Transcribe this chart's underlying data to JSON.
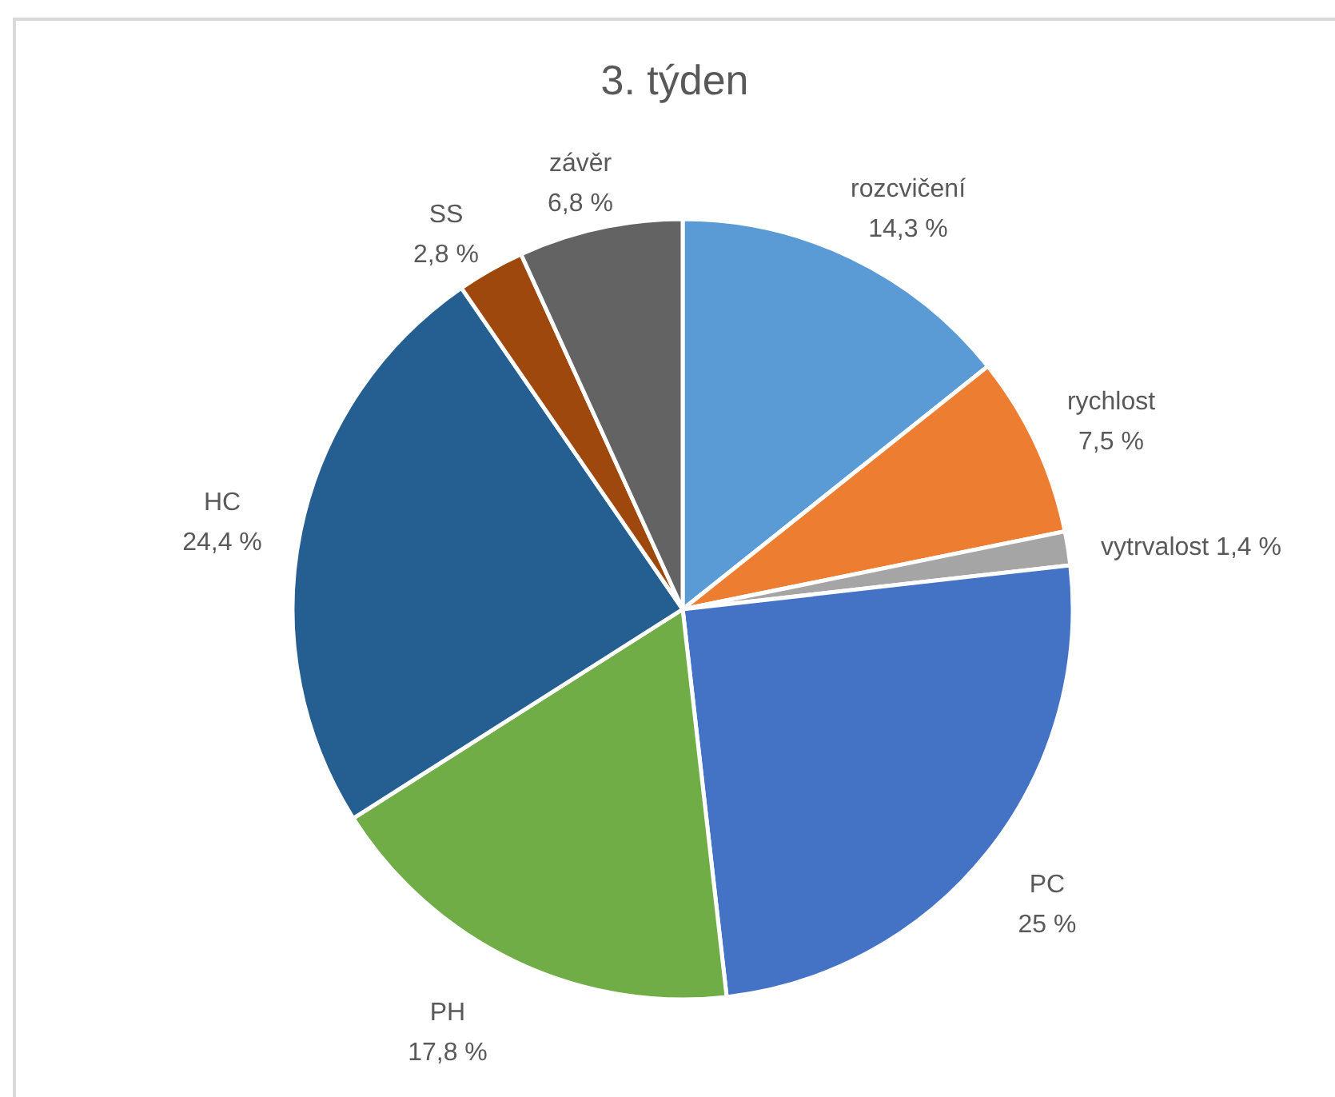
{
  "chart_data": {
    "type": "pie",
    "title": "3. týden",
    "categories": [
      "rozcvičení",
      "rychlost",
      "vytrvalost",
      "PC",
      "PH",
      "HC",
      "SS",
      "závěr"
    ],
    "values": [
      14.3,
      7.5,
      1.4,
      25,
      17.8,
      24.4,
      2.8,
      6.8
    ],
    "colors": [
      "#5b9bd5",
      "#ed7d31",
      "#a5a5a5",
      "#4472c4",
      "#70ad47",
      "#255e91",
      "#9e480e",
      "#636363"
    ],
    "value_labels": [
      "14,3 %",
      "7,5 %",
      "1,4 %",
      "25 %",
      "17,8 %",
      "24,4 %",
      "2,8 %",
      "6,8 %"
    ]
  }
}
